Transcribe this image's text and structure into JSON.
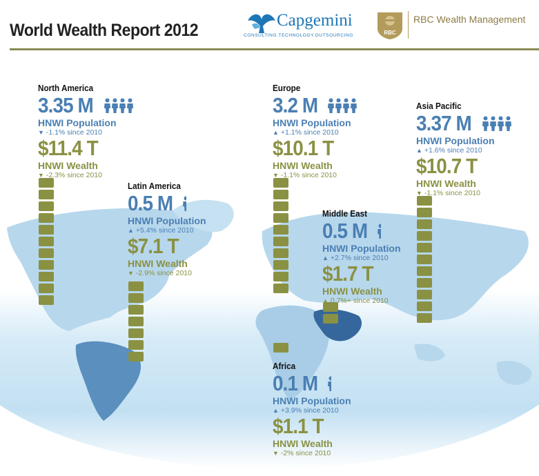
{
  "header": {
    "title": "World Wealth Report 2012",
    "capgemini_name": "Capgemini",
    "capgemini_tagline": "CONSULTING.TECHNOLOGY.OUTSOURCING",
    "rbc_mark": "RBC",
    "rbc_name": "RBC Wealth Management"
  },
  "colors": {
    "population": "#4a7fb3",
    "wealth": "#8a9143",
    "rule": "#8a8a55"
  },
  "labels": {
    "population": "HNWI Population",
    "wealth": "HNWI Wealth"
  },
  "regions": [
    {
      "name": "North America",
      "population": "3.35 M",
      "pop_change": "-1.1% since 2010",
      "pop_dir": "down",
      "wealth": "$11.4 T",
      "wealth_change": "-2.3% since 2010",
      "wealth_dir": "down",
      "wealth_trillions": 11.4
    },
    {
      "name": "Latin America",
      "population": "0.5 M",
      "pop_change": "+5.4% since 2010",
      "pop_dir": "up",
      "wealth": "$7.1 T",
      "wealth_change": "-2.9% since 2010",
      "wealth_dir": "down",
      "wealth_trillions": 7.1
    },
    {
      "name": "Europe",
      "population": "3.2 M",
      "pop_change": "+1.1% since 2010",
      "pop_dir": "up",
      "wealth": "$10.1 T",
      "wealth_change": "-1.1% since 2010",
      "wealth_dir": "down",
      "wealth_trillions": 10.1
    },
    {
      "name": "Middle East",
      "population": "0.5 M",
      "pop_change": "+2.7% since 2010",
      "pop_dir": "up",
      "wealth": "$1.7 T",
      "wealth_change": "0.7%+ since 2010",
      "wealth_dir": "up",
      "wealth_trillions": 1.7
    },
    {
      "name": "Asia Pacific",
      "population": "3.37 M",
      "pop_change": "+1.6% since 2010",
      "pop_dir": "up",
      "wealth": "$10.7 T",
      "wealth_change": "-1.1% since 2010",
      "wealth_dir": "down",
      "wealth_trillions": 10.7
    },
    {
      "name": "Africa",
      "population": "0.1 M",
      "pop_change": "+3.9% since 2010",
      "pop_dir": "up",
      "wealth": "$1.1 T",
      "wealth_change": "-2% since 2010",
      "wealth_dir": "down",
      "wealth_trillions": 1.1
    }
  ],
  "icons": {
    "people": "person-icon",
    "up": "triangle-up-icon",
    "down": "triangle-down-icon"
  }
}
